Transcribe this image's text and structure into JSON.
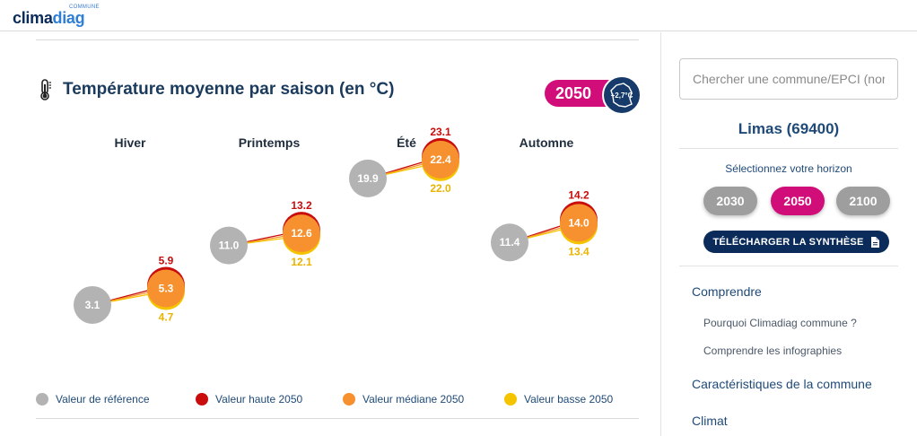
{
  "header": {
    "logo_sup": "COMMUNE",
    "logo_part1": "clima",
    "logo_part2": "diag"
  },
  "section": {
    "icon": "thermometer-icon",
    "title": "Température moyenne par saison (en °C)",
    "horizon_badge": "2050",
    "warming_badge": "+2,7°C"
  },
  "chart_data": {
    "type": "scatter",
    "title": "Température moyenne par saison (en °C)",
    "categories": [
      "Hiver",
      "Printemps",
      "Été",
      "Automne"
    ],
    "series": [
      {
        "name": "Valeur de référence",
        "values": [
          3.1,
          11.0,
          19.9,
          11.4
        ],
        "color": "#b3b3b3"
      },
      {
        "name": "Valeur haute 2050",
        "values": [
          5.9,
          13.2,
          23.1,
          14.2
        ],
        "color": "#c90c0c"
      },
      {
        "name": "Valeur médiane 2050",
        "values": [
          5.3,
          12.6,
          22.4,
          14.0
        ],
        "color": "#f7902f"
      },
      {
        "name": "Valeur basse 2050",
        "values": [
          4.7,
          12.1,
          22.0,
          13.4
        ],
        "color": "#f5c400"
      }
    ],
    "labels": {
      "reference": [
        "3.1",
        "11.0",
        "19.9",
        "11.4"
      ],
      "high": [
        "5.9",
        "13.2",
        "23.1",
        "14.2"
      ],
      "median": [
        "5.3",
        "12.6",
        "22.4",
        "14.0"
      ],
      "low": [
        "4.7",
        "12.1",
        "22.0",
        "13.4"
      ]
    },
    "legend_position": "bottom"
  },
  "legend": [
    {
      "label": "Valeur de référence",
      "color": "#b3b3b3"
    },
    {
      "label": "Valeur haute 2050",
      "color": "#c90c0c"
    },
    {
      "label": "Valeur médiane 2050",
      "color": "#f7902f"
    },
    {
      "label": "Valeur basse 2050",
      "color": "#f5c400"
    }
  ],
  "sidebar": {
    "search_placeholder": "Chercher une commune/EPCI (nom ...",
    "commune": "Limas (69400)",
    "horizon_label": "Sélectionnez votre horizon",
    "horizons": [
      {
        "label": "2030",
        "color": "#9e9e9e",
        "selected": false
      },
      {
        "label": "2050",
        "color": "#d10d7a",
        "selected": true
      },
      {
        "label": "2100",
        "color": "#9e9e9e",
        "selected": false
      }
    ],
    "download_label": "TÉLÉCHARGER LA SYNTHÈSE",
    "download_icon": "file-icon",
    "nav": {
      "comprendre": "Comprendre",
      "sub1": "Pourquoi Climadiag commune ?",
      "sub2": "Comprendre les infographies",
      "caracteristiques": "Caractéristiques de la commune",
      "climat": "Climat"
    }
  },
  "colors": {
    "accent": "#d10d7a",
    "navy": "#0b2c5a",
    "title": "#1a3b5d"
  }
}
